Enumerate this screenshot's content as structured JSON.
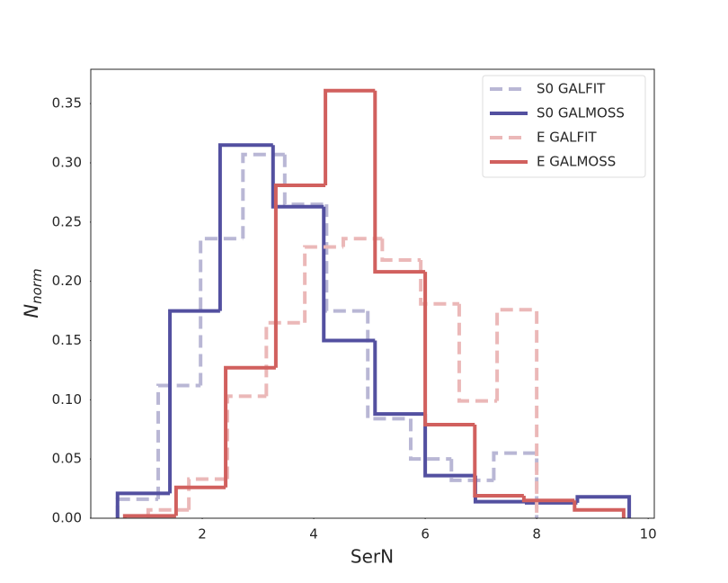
{
  "chart_data": {
    "type": "histogram",
    "xlabel": "SerN",
    "ylabel": {
      "base": "N",
      "sub": "norm"
    },
    "xlim": [
      0,
      10.11
    ],
    "ylim": [
      0,
      0.379
    ],
    "xticks": [
      2,
      4,
      6,
      8,
      10
    ],
    "yticks": [
      {
        "value": 0,
        "label": "0.00"
      },
      {
        "value": 0.05,
        "label": "0.05"
      },
      {
        "value": 0.1,
        "label": "0.10"
      },
      {
        "value": 0.15,
        "label": "0.15"
      },
      {
        "value": 0.2,
        "label": "0.20"
      },
      {
        "value": 0.25,
        "label": "0.25"
      },
      {
        "value": 0.3,
        "label": "0.30"
      },
      {
        "value": 0.35,
        "label": "0.35"
      }
    ],
    "legend": "upper right",
    "series": [
      {
        "name": "S0 GALFIT",
        "color": "#b9b7d5",
        "dashed": true,
        "bins": [
          0.48,
          1.21,
          1.97,
          2.73,
          3.48,
          4.23,
          4.97,
          5.74,
          6.47,
          7.23,
          8.0
        ],
        "values": [
          0.016,
          0.112,
          0.236,
          0.307,
          0.265,
          0.175,
          0.084,
          0.05,
          0.032,
          0.055
        ]
      },
      {
        "name": "S0 GALMOSS",
        "color": "#5350a0",
        "dashed": false,
        "bins": [
          0.48,
          1.42,
          2.32,
          3.27,
          4.18,
          5.1,
          6.0,
          6.9,
          7.82,
          8.73,
          9.66
        ],
        "values": [
          0.021,
          0.175,
          0.315,
          0.263,
          0.15,
          0.088,
          0.036,
          0.014,
          0.013,
          0.018
        ]
      },
      {
        "name": "E GALFIT",
        "color": "#ebb8b8",
        "dashed": true,
        "bins": [
          1.03,
          1.76,
          2.45,
          3.15,
          3.84,
          4.53,
          5.23,
          5.92,
          6.61,
          7.29,
          8.0
        ],
        "values": [
          0.007,
          0.033,
          0.103,
          0.165,
          0.229,
          0.236,
          0.218,
          0.181,
          0.099,
          0.176
        ]
      },
      {
        "name": "E GALMOSS",
        "color": "#d1605e",
        "dashed": false,
        "bins": [
          0.61,
          1.53,
          2.42,
          3.32,
          4.21,
          5.1,
          6.0,
          6.89,
          7.77,
          8.68,
          9.56
        ],
        "values": [
          0.002,
          0.026,
          0.127,
          0.281,
          0.361,
          0.208,
          0.079,
          0.019,
          0.015,
          0.007
        ]
      }
    ]
  }
}
